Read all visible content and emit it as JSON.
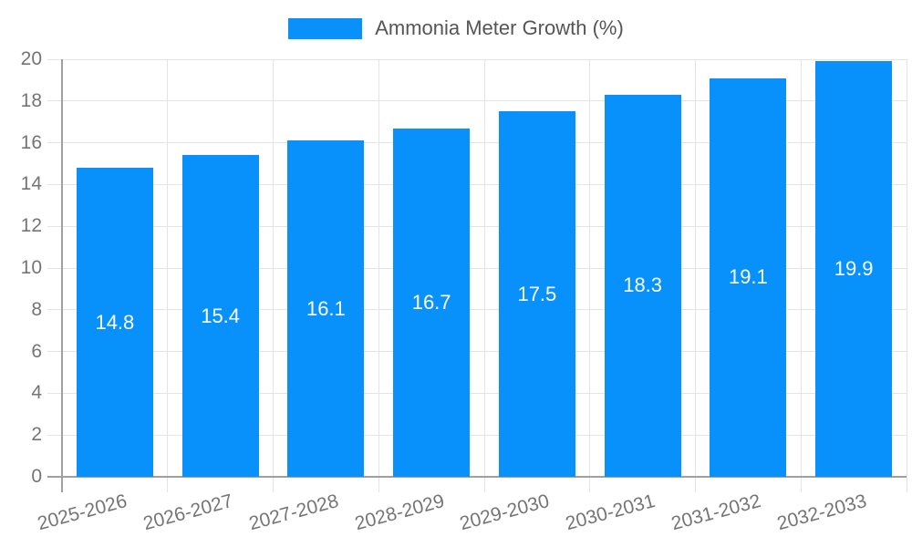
{
  "legend": {
    "items": [
      {
        "label": "Ammonia Meter Growth (%)",
        "color": "#0991fb"
      }
    ],
    "position": "top"
  },
  "colors": {
    "bar": "#0991fb",
    "grid": "#e4e4e4",
    "axis": "#a0a0a0",
    "tick_label": "#757575",
    "legend_text": "#555555",
    "value_label": "#ffffff",
    "background": "#ffffff"
  },
  "chart_data": {
    "type": "bar",
    "title": "",
    "xlabel": "",
    "ylabel": "",
    "categories": [
      "2025-2026",
      "2026-2027",
      "2027-2028",
      "2028-2029",
      "2029-2030",
      "2030-2031",
      "2031-2032",
      "2032-2033"
    ],
    "series": [
      {
        "name": "Ammonia Meter Growth (%)",
        "values": [
          14.8,
          15.4,
          16.1,
          16.7,
          17.5,
          18.3,
          19.1,
          19.9
        ]
      }
    ],
    "value_labels": [
      "14.8",
      "15.4",
      "16.1",
      "16.7",
      "17.5",
      "18.3",
      "19.1",
      "19.9"
    ],
    "y_ticks": [
      0,
      2,
      4,
      6,
      8,
      10,
      12,
      14,
      16,
      18,
      20
    ],
    "ylim": [
      0,
      20
    ],
    "ytick_step": 2,
    "grid": true,
    "x_label_rotation_deg": -15,
    "legend_position": "top",
    "value_label_position": "inside-center"
  }
}
